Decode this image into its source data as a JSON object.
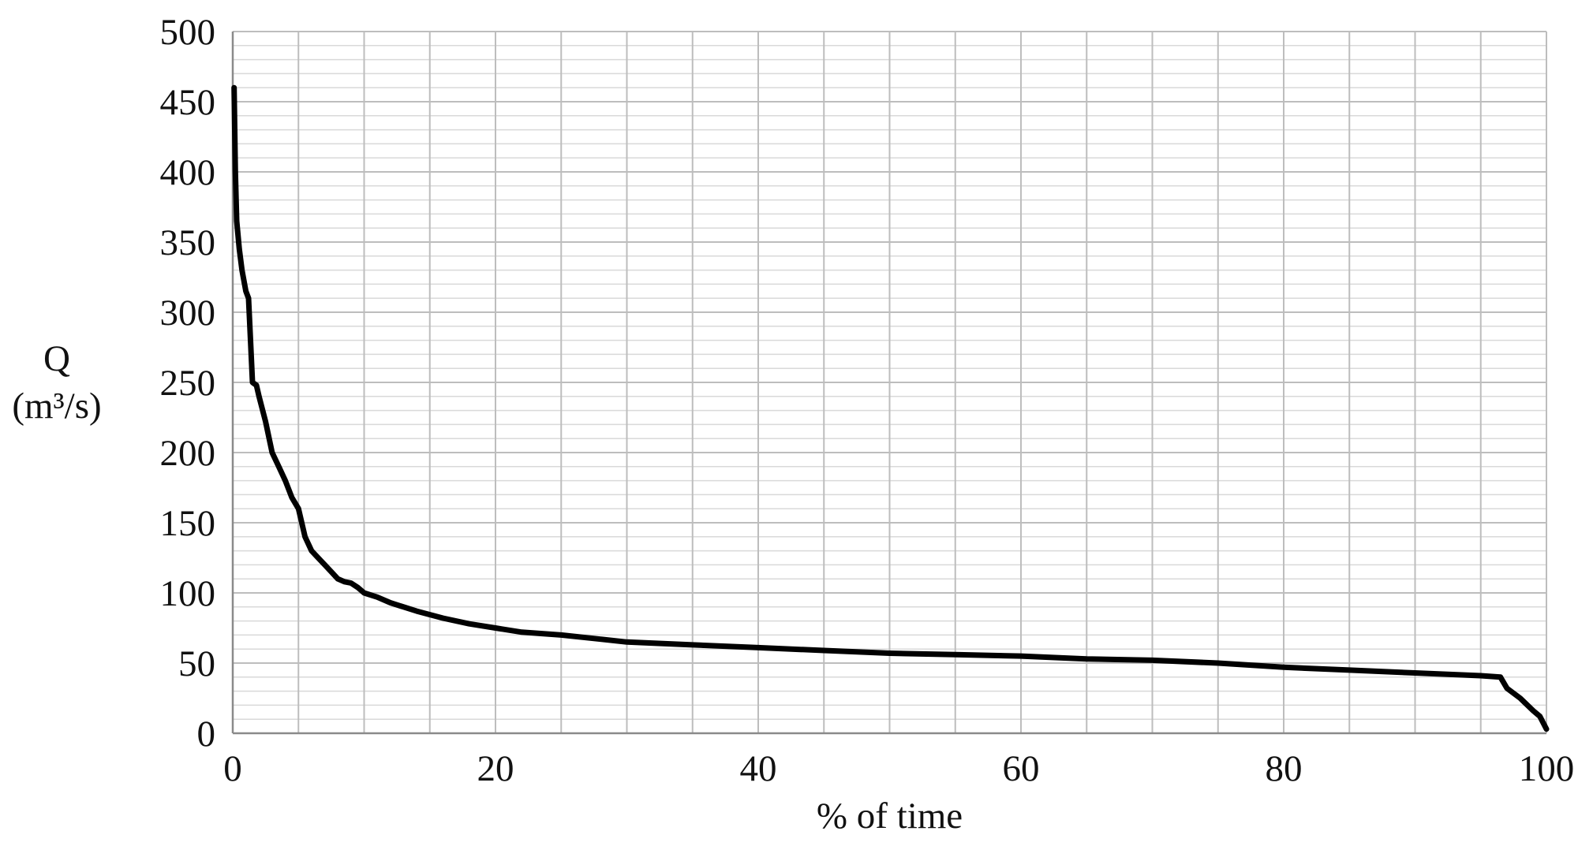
{
  "chart_data": {
    "type": "line",
    "title": "",
    "xlabel": "% of time",
    "ylabel": "Q",
    "ylabel_units": "(m³/s)",
    "xlim": [
      0,
      100
    ],
    "ylim": [
      0,
      500
    ],
    "x_ticks": [
      0,
      20,
      40,
      60,
      80,
      100
    ],
    "x_tick_labels": [
      "0",
      "20",
      "40",
      "60",
      "80",
      "100"
    ],
    "y_ticks": [
      0,
      50,
      100,
      150,
      200,
      250,
      300,
      350,
      400,
      450,
      500
    ],
    "y_tick_labels": [
      "0",
      "50",
      "100",
      "150",
      "200",
      "250",
      "300",
      "350",
      "400",
      "450",
      "500"
    ],
    "grid": true,
    "grid_major_x_step": 5,
    "grid_major_y_step": 50,
    "grid_minor_y_step": 10,
    "line_color": "#000000",
    "grid_color": "#bdbdbd",
    "series": [
      {
        "x": [
          0.1,
          0.2,
          0.3,
          0.5,
          0.7,
          1.0,
          1.2,
          1.5,
          1.8,
          2.0,
          2.5,
          3.0,
          3.5,
          4.0,
          4.5,
          5.0,
          5.5,
          6.0,
          6.5,
          7.0,
          7.5,
          8.0,
          8.5,
          9.0,
          9.5,
          10.0,
          11.0,
          12.0,
          14.0,
          16.0,
          18.0,
          20.0,
          22.0,
          25.0,
          28.0,
          30.0,
          35.0,
          40.0,
          45.0,
          50.0,
          55.0,
          60.0,
          65.0,
          70.0,
          75.0,
          80.0,
          85.0,
          90.0,
          95.0,
          96.5,
          97.0,
          98.0,
          99.0,
          99.5,
          100.0
        ],
        "y": [
          460,
          400,
          365,
          345,
          330,
          315,
          310,
          250,
          248,
          240,
          222,
          200,
          190,
          180,
          168,
          160,
          140,
          130,
          125,
          120,
          115,
          110,
          108,
          107,
          104,
          100,
          97,
          93,
          87,
          82,
          78,
          75,
          72,
          70,
          67,
          65,
          63,
          61,
          59,
          57,
          56,
          55,
          53,
          52,
          50,
          47,
          45,
          43,
          41,
          40,
          32,
          25,
          16,
          12,
          3
        ]
      }
    ]
  }
}
